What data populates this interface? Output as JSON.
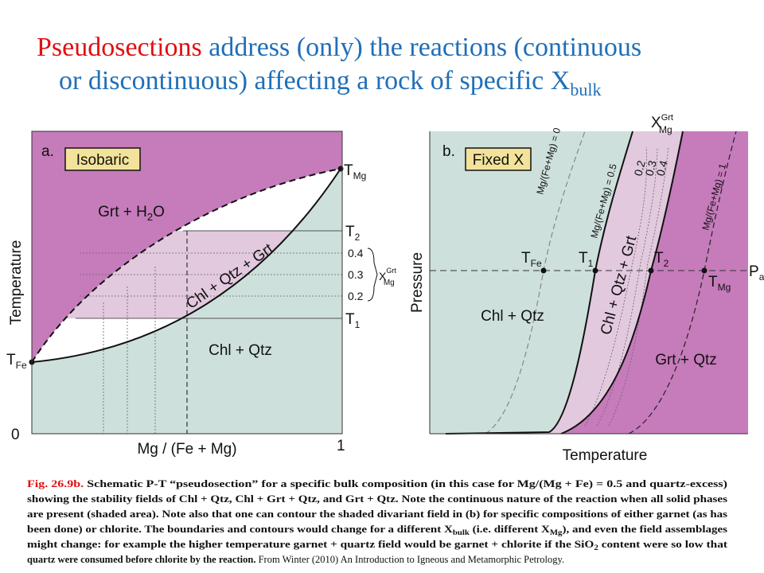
{
  "title": {
    "line1": [
      "Pseudosections",
      " address (only) the reactions (continuous"
    ],
    "line2": [
      "or discontinuous) affecting a rock of specific X",
      "bulk"
    ]
  },
  "panel_a": {
    "letter": "a.",
    "box": "Isobaric",
    "y_axis": "Temperature",
    "x_axis": "Mg / (Fe + Mg)",
    "x_start": "0",
    "x_end": "1",
    "t_fe": [
      "T",
      "Fe"
    ],
    "t_mg": [
      "T",
      "Mg"
    ],
    "t2": [
      "T",
      "2"
    ],
    "t1": [
      "T",
      "1"
    ],
    "contours": [
      "0.4",
      "0.3",
      "0.2"
    ],
    "x_grt": [
      "X",
      "Grt",
      "Mg"
    ],
    "field_upper": [
      "Grt + H",
      "2",
      "O"
    ],
    "field_loop": "Chl + Qtz + Grt",
    "field_lower": "Chl + Qtz"
  },
  "panel_b": {
    "letter": "b.",
    "box": "Fixed X",
    "y_axis": "Pressure",
    "x_axis": "Temperature",
    "x_grt": [
      "X",
      "Grt",
      "Mg"
    ],
    "isopleths": [
      "Mg/(Fe+Mg) = 0",
      "Mg/(Fe+Mg) = 0.5",
      "Mg/(Fe+Mg) = 1"
    ],
    "contours": [
      "0.2",
      "0.3",
      "0.4"
    ],
    "t_fe": [
      "T",
      "Fe"
    ],
    "t1": [
      "T",
      "1"
    ],
    "t2": [
      "T",
      "2"
    ],
    "t_mg": [
      "T",
      "Mg"
    ],
    "p_a": [
      "P",
      "a"
    ],
    "field_left": "Chl + Qtz",
    "field_mid": "Chl + Qtz + Grt",
    "field_right": "Grt + Qtz"
  },
  "caption": {
    "lines": [
      [
        "Fig. 26.9b.",
        " Schematic P-T “pseudosection” for a specific bulk composition (in this case for Mg/(Mg + Fe) = 0.5 and quartz-excess)"
      ],
      [
        "showing the stability fields of Chl + Qtz, Chl + Grt + Qtz, and Grt + Qtz. Note the continuous nature of the reaction when all solid phases"
      ],
      [
        "are present (shaded area). Note also that one can contour the shaded divariant field in (b) for specific compositions of either garnet (as has"
      ],
      [
        "been done) or chlorite. The boundaries and contours would change for a different X",
        "bulk",
        " (i.e. different X",
        "Mg",
        "), and even the field assemblages"
      ],
      [
        "might change: for example the higher temperature garnet + quartz field would be garnet + chlorite if the SiO",
        "2",
        " content were so low that"
      ],
      [
        "quartz were consumed before chlorite by the reaction.",
        " From Winter (2010) An Introduction to Igneous and Metamorphic Petrology."
      ]
    ]
  }
}
